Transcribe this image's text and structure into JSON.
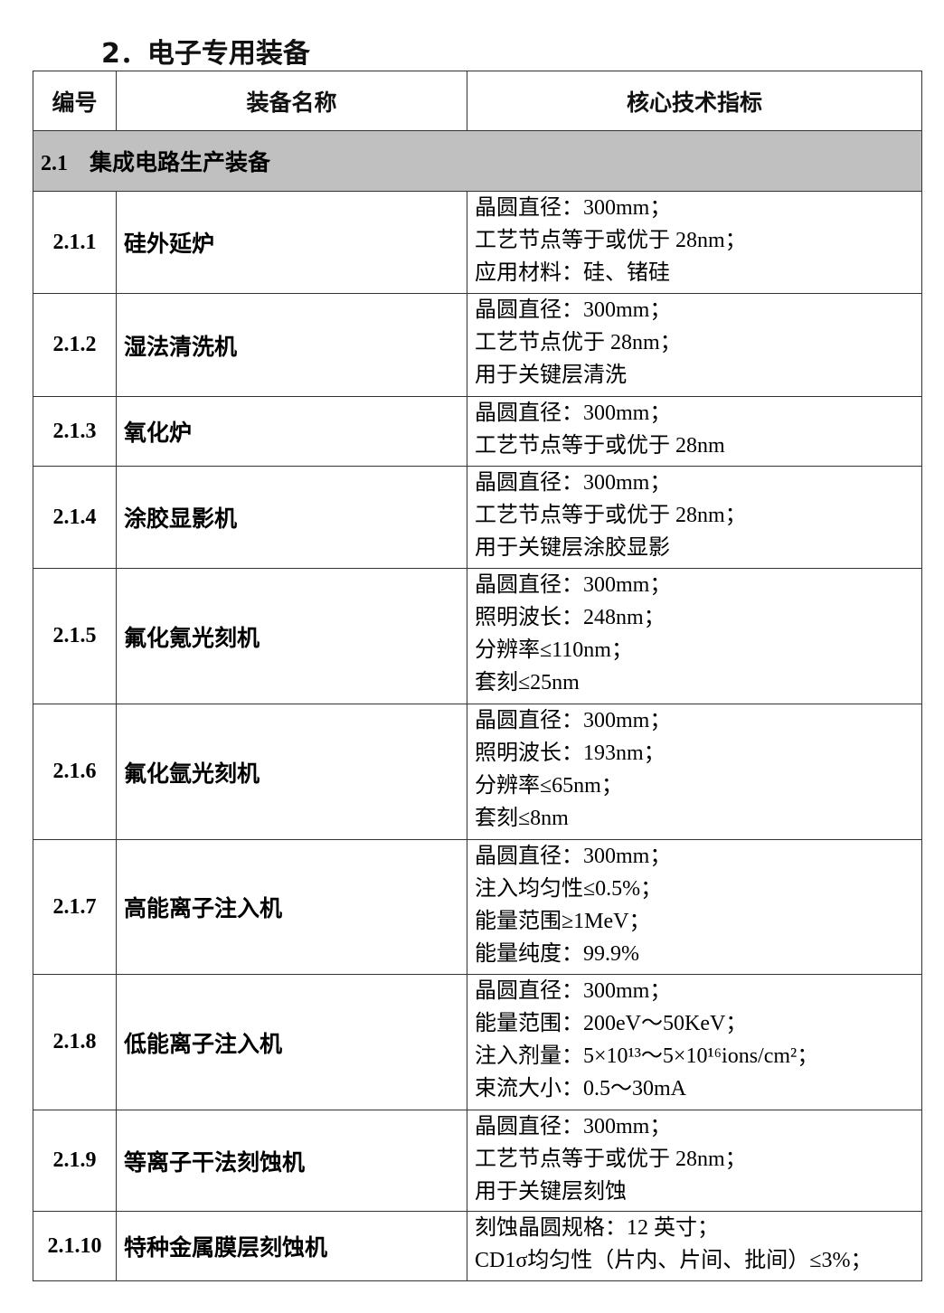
{
  "header": {
    "title": "2．电子专用装备"
  },
  "table": {
    "columns": [
      "编号",
      "装备名称",
      "核心技术指标"
    ],
    "section": {
      "id": "2.1",
      "name": "集成电路生产装备"
    },
    "rows": [
      {
        "id": "2.1.1",
        "name": "硅外延炉",
        "specs": [
          "晶圆直径：300mm；",
          "工艺节点等于或优于 28nm；",
          "应用材料：硅、锗硅"
        ]
      },
      {
        "id": "2.1.2",
        "name": "湿法清洗机",
        "specs": [
          "晶圆直径：300mm；",
          "工艺节点优于 28nm；",
          "用于关键层清洗"
        ]
      },
      {
        "id": "2.1.3",
        "name": "氧化炉",
        "specs": [
          "晶圆直径：300mm；",
          "工艺节点等于或优于 28nm"
        ]
      },
      {
        "id": "2.1.4",
        "name": "涂胶显影机",
        "specs": [
          "晶圆直径：300mm；",
          "工艺节点等于或优于 28nm；",
          "用于关键层涂胶显影"
        ]
      },
      {
        "id": "2.1.5",
        "name": "氟化氪光刻机",
        "specs": [
          "晶圆直径：300mm；",
          "照明波长：248nm；",
          "分辨率≤110nm；",
          "套刻≤25nm"
        ]
      },
      {
        "id": "2.1.6",
        "name": "氟化氩光刻机",
        "specs": [
          "晶圆直径：300mm；",
          "照明波长：193nm；",
          "分辨率≤65nm；",
          "套刻≤8nm"
        ]
      },
      {
        "id": "2.1.7",
        "name": "高能离子注入机",
        "specs": [
          "晶圆直径：300mm；",
          "注入均匀性≤0.5%；",
          "能量范围≥1MeV；",
          "能量纯度：99.9%"
        ]
      },
      {
        "id": "2.1.8",
        "name": "低能离子注入机",
        "specs": [
          "晶圆直径：300mm；",
          "能量范围：200eV～50KeV；",
          "注入剂量：5×10¹³～5×10¹⁶ions/cm²；",
          "束流大小：0.5～30mA"
        ]
      },
      {
        "id": "2.1.9",
        "name": "等离子干法刻蚀机",
        "specs": [
          "晶圆直径：300mm；",
          "工艺节点等于或优于 28nm；",
          "用于关键层刻蚀"
        ]
      },
      {
        "id": "2.1.10",
        "name": "特种金属膜层刻蚀机",
        "specs": [
          "刻蚀晶圆规格：12 英寸；",
          "CD1σ均匀性（片内、片间、批间）≤3%；"
        ]
      }
    ]
  }
}
